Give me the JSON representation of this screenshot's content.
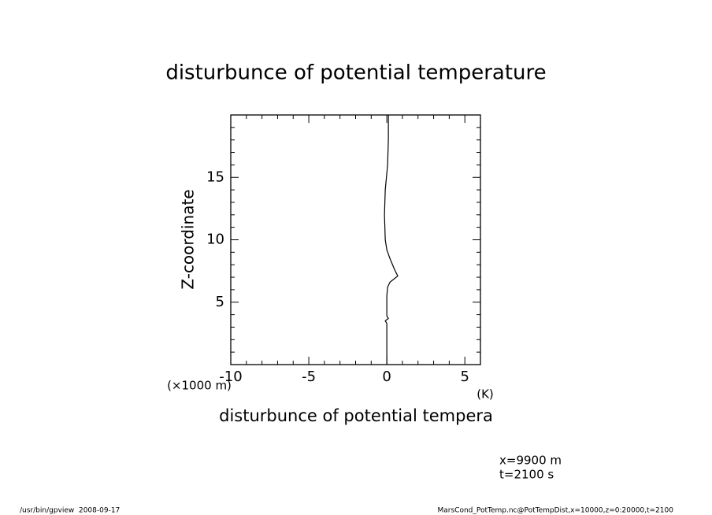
{
  "chart_data": {
    "type": "line",
    "title": "disturbunce of potential temperature",
    "ylabel": "Z-coordinate",
    "yunit": "(×1000 m)",
    "xlabel": "disturbunce of potential tempera",
    "xunit": "(K)",
    "annotations": [
      "x=9900 m",
      "t=2100 s"
    ],
    "footer_left": "/usr/bin/gpview  2008-09-17",
    "footer_right": "MarsCond_PotTemp.nc@PotTempDist,x=10000,z=0:20000,t=2100",
    "xlim": [
      -10,
      6
    ],
    "ylim": [
      0,
      20
    ],
    "xticks": [
      -10,
      -5,
      0,
      5
    ],
    "yticks": [
      5,
      10,
      15
    ],
    "xminor": [
      -9,
      -8,
      -7,
      -6,
      -4,
      -3,
      -2,
      -1,
      1,
      2,
      3,
      4,
      6
    ],
    "yminor": [
      1,
      2,
      3,
      4,
      6,
      7,
      8,
      9,
      11,
      12,
      13,
      14,
      16,
      17,
      18,
      19
    ],
    "color": "#000000",
    "x": [
      0,
      0,
      -0.1,
      0.1,
      0,
      0,
      0.05,
      0.2,
      0.7,
      0.5,
      0.2,
      0,
      -0.1,
      -0.15,
      -0.1,
      0.05,
      0.1,
      0.1
    ],
    "values": [
      0,
      3.3,
      3.5,
      3.7,
      3.9,
      5.5,
      6.2,
      6.6,
      7.1,
      7.6,
      8.5,
      9.2,
      10,
      12,
      14,
      16,
      18,
      20
    ]
  }
}
